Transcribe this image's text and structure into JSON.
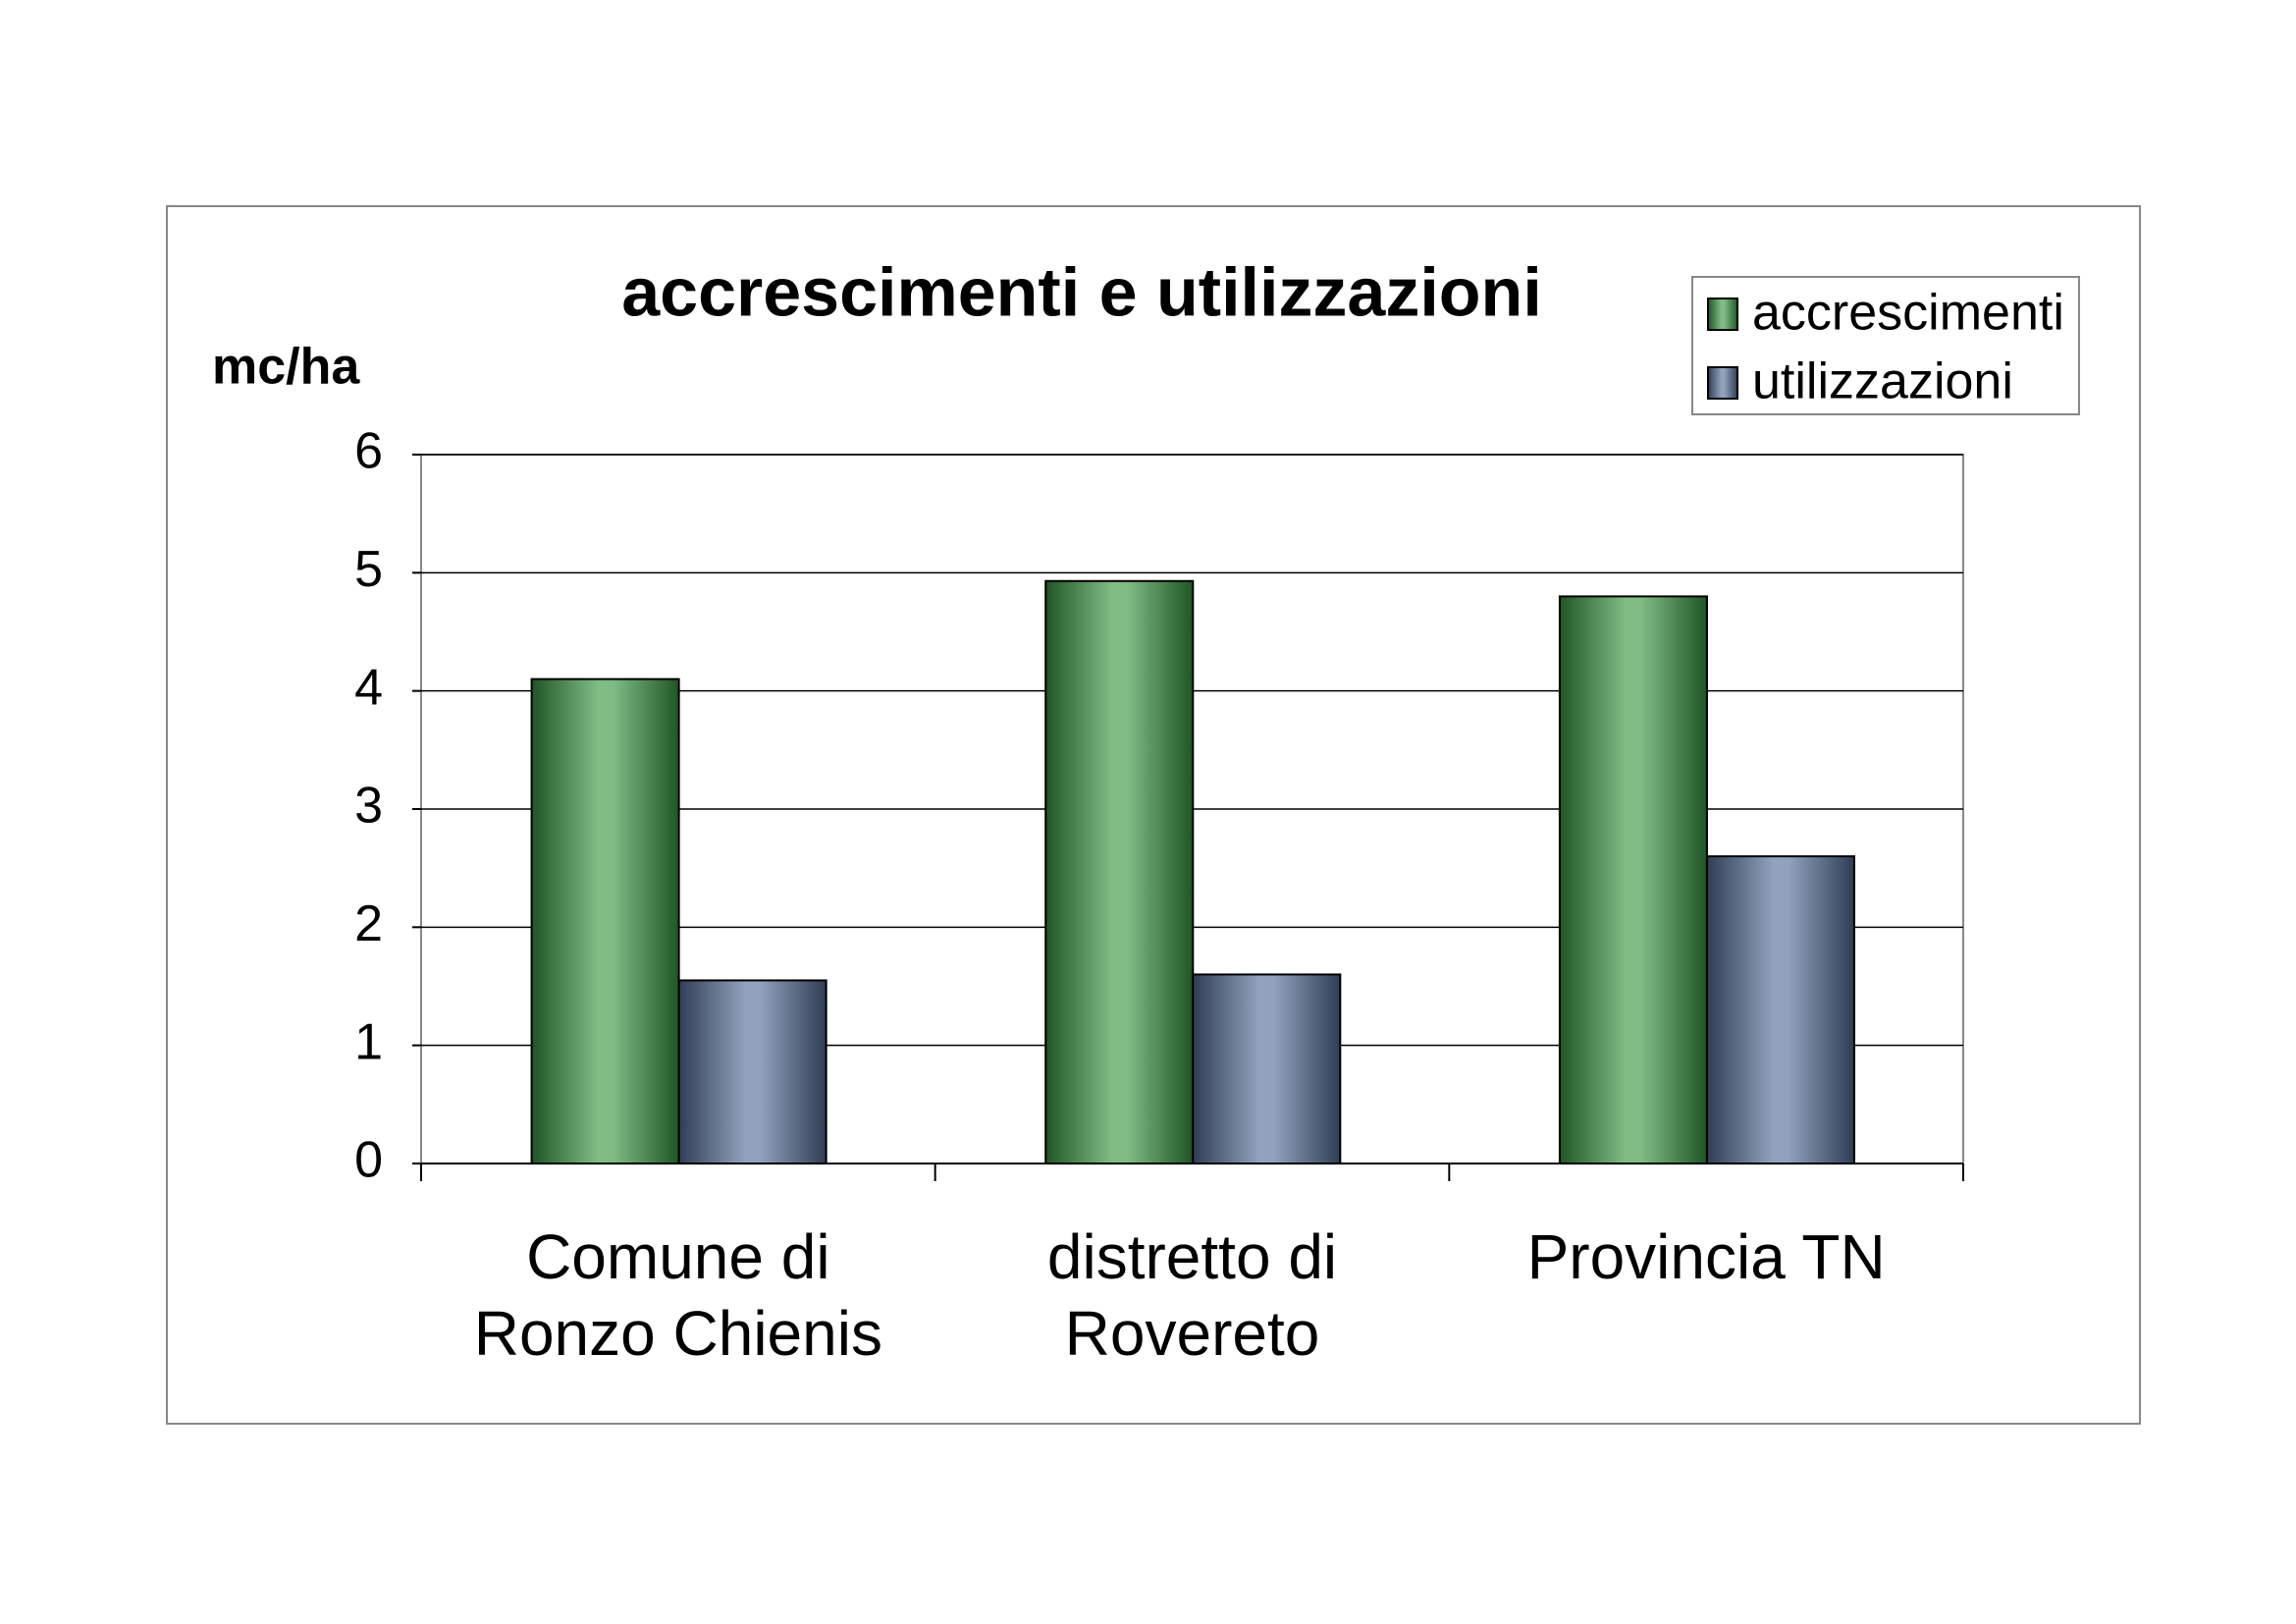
{
  "chart_data": {
    "type": "bar",
    "title": "accrescimenti e utilizzazioni",
    "y_label": "mc/ha",
    "categories": [
      "Comune di Ronzo Chienis",
      "distretto di Rovereto",
      "Provincia TN"
    ],
    "series": [
      {
        "name": "accrescimenti",
        "color": "#3a9a44",
        "values": [
          4.1,
          4.93,
          4.8
        ]
      },
      {
        "name": "utilizzazioni",
        "color": "#56709a",
        "values": [
          1.55,
          1.6,
          2.6
        ]
      }
    ],
    "ylim": [
      0,
      6
    ],
    "yticks": [
      0,
      1,
      2,
      3,
      4,
      5,
      6
    ],
    "grid": true,
    "legend": "top-right"
  }
}
